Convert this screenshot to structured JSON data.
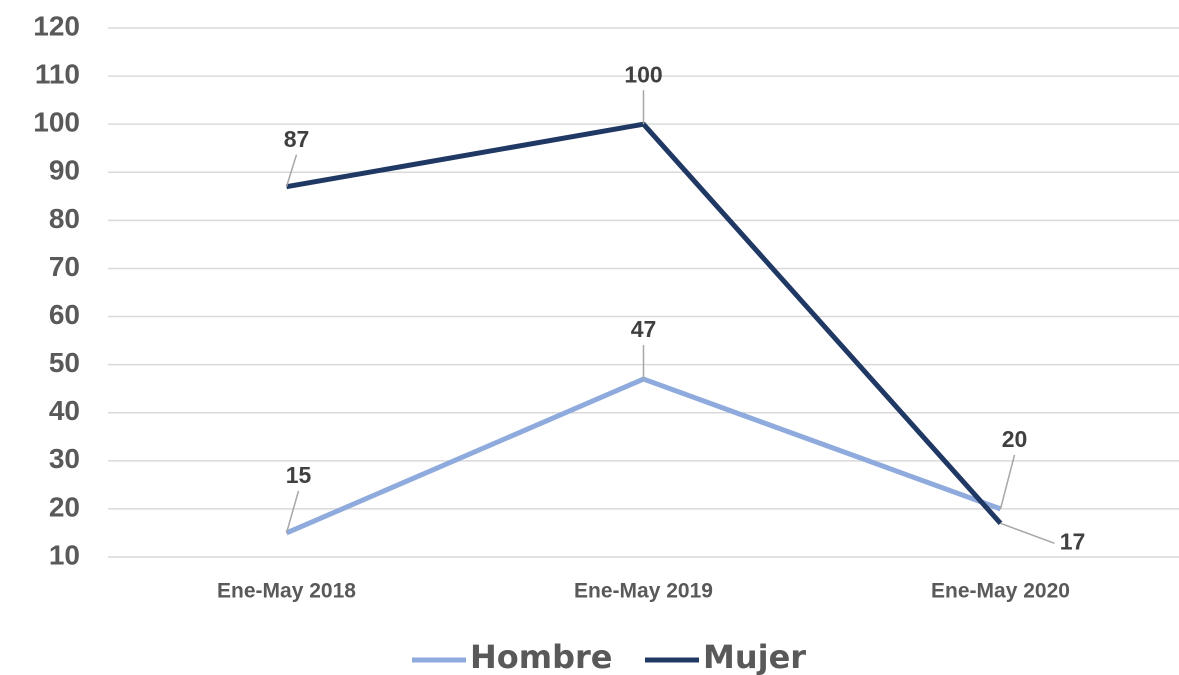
{
  "chart_data": {
    "type": "line",
    "categories": [
      "Ene-May 2018",
      "Ene-May 2019",
      "Ene-May 2020"
    ],
    "series": [
      {
        "name": "Hombre",
        "color": "#8faadc",
        "values": [
          15,
          47,
          20
        ]
      },
      {
        "name": "Mujer",
        "color": "#203864",
        "values": [
          87,
          100,
          17
        ]
      }
    ],
    "ylim": [
      10,
      120
    ],
    "yticks": [
      10,
      20,
      30,
      40,
      50,
      60,
      70,
      80,
      90,
      100,
      110,
      120
    ],
    "grid": true,
    "legend": "bottom"
  }
}
